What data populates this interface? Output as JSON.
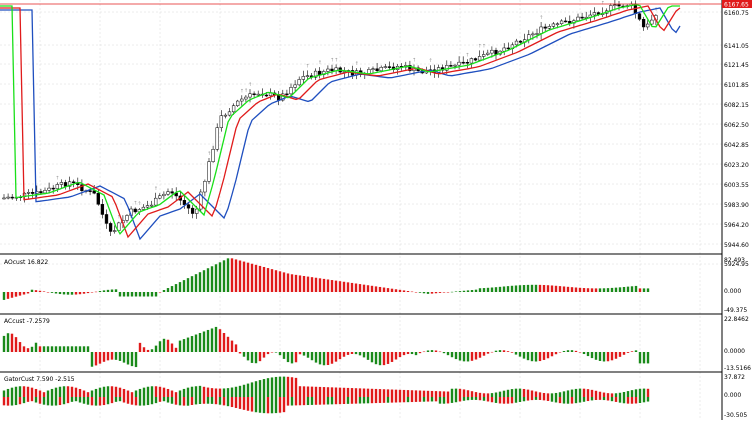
{
  "colors": {
    "alligator_jaw": "#1f4fbf",
    "alligator_teeth": "#e01b1b",
    "alligator_lips": "#19e019",
    "bull_bar": "#1a8a1a",
    "bear_bar": "#e01b1b",
    "grid": "#d8d8d8",
    "current_price_bg": "#e01b1b"
  },
  "main_pane": {
    "current_price": "6167.65",
    "price_labels": [
      "6160.75",
      "6141.05",
      "6121.45",
      "6101.85",
      "6082.15",
      "6062.50",
      "6042.85",
      "6023.20",
      "6003.55",
      "5983.90",
      "5964.20",
      "5944.60",
      "5924.95"
    ]
  },
  "ao_pane": {
    "title": "AOcust 16.822",
    "labels": [
      "82.493",
      "0.000",
      "-49.375"
    ]
  },
  "ac_pane": {
    "title": "ACcust -7.2579",
    "labels": [
      "22.8462",
      "0.0000",
      "-13.5166"
    ]
  },
  "gator_pane": {
    "title": "GatorCust 7.590 -2.515",
    "labels": [
      "37.872",
      "0.000",
      "-30.505"
    ]
  }
}
